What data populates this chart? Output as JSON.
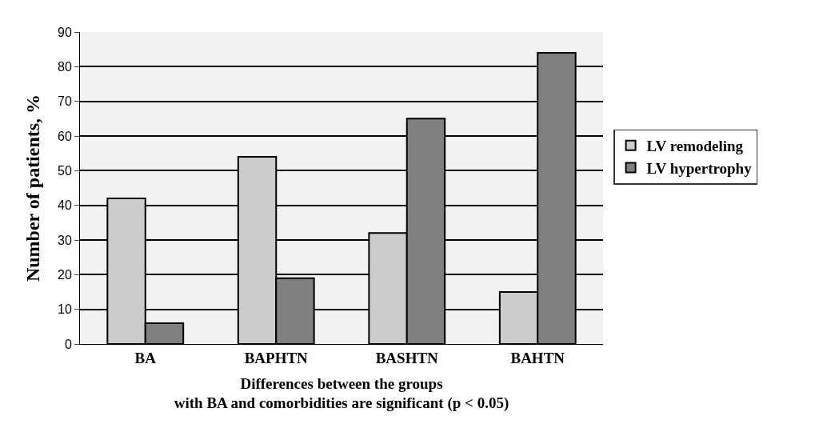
{
  "chart_data": {
    "type": "bar",
    "categories": [
      "BA",
      "BAPHTN",
      "BASHTN",
      "BAHTN"
    ],
    "series": [
      {
        "name": "LV remodeling",
        "color": "#cccccc",
        "values": [
          42,
          54,
          32,
          15
        ]
      },
      {
        "name": "LV hypertrophy",
        "color": "#808080",
        "values": [
          6,
          19,
          65,
          84
        ]
      }
    ],
    "ylabel": "Number of patients, %",
    "xlabel": "Differences between the groups\nwith BA and comorbidities are significant (p < 0.05)",
    "ylim": [
      0,
      90
    ],
    "yticks": [
      0,
      10,
      20,
      30,
      40,
      50,
      60,
      70,
      80,
      90
    ],
    "grid": "y",
    "legend": "right"
  }
}
